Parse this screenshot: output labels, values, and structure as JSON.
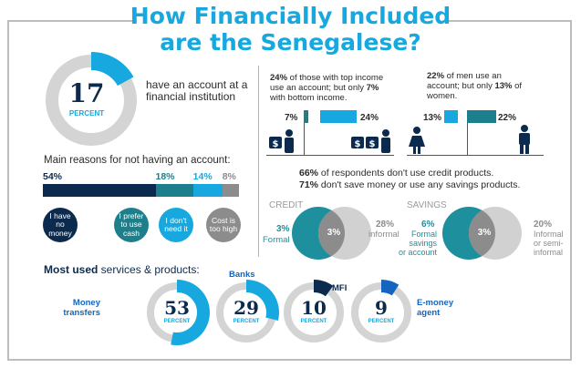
{
  "title": {
    "line1": "How Financially Included",
    "line2": "are the Senegalese?"
  },
  "account": {
    "number": "17",
    "unit": "PERCENT",
    "value": 17,
    "text_line1": "have an account at a",
    "text_line2": "financial institution"
  },
  "reasons": {
    "heading": "Main reasons for not having an account:",
    "items": [
      {
        "pct": "54%",
        "value": 54,
        "label": "I have no money",
        "color": "#0b2a4d"
      },
      {
        "pct": "18%",
        "value": 18,
        "label": "I prefer to use cash",
        "color": "#1e7f8c"
      },
      {
        "pct": "14%",
        "value": 14,
        "label": "I don't need it",
        "color": "#16a8df"
      },
      {
        "pct": "8%",
        "value": 8,
        "label": "Cost is too high",
        "color": "#8c8c8c"
      }
    ]
  },
  "income": {
    "text_a": "24%",
    "text_b": " of those with top income",
    "text_c": "use an account; but only ",
    "text_d": "7%",
    "text_e": "with bottom income.",
    "bottom_label": "7%",
    "bottom_value": 7,
    "top_label": "24%",
    "top_value": 24
  },
  "gender": {
    "text_a": "22%",
    "text_b": " of men use an",
    "text_c": "account; but only ",
    "text_d": "13%",
    "text_e": " of",
    "text_f": "women.",
    "women_label": "13%",
    "women_value": 13,
    "men_label": "22%",
    "men_value": 22
  },
  "credit_savings": {
    "line1_pct": "66%",
    "line1_text": " of respondents don't use credit products.",
    "line2_pct": "71%",
    "line2_text": " don't save money or use any savings products."
  },
  "credit": {
    "heading": "CREDIT",
    "formal_pct": "3%",
    "formal_label": "Formal",
    "overlap": "3%",
    "informal_pct": "28%",
    "informal_label": "informal"
  },
  "savings": {
    "heading": "SAVINGS",
    "formal_pct": "6%",
    "formal_l1": "Formal",
    "formal_l2": "savings",
    "formal_l3": "or account",
    "overlap": "3%",
    "informal_pct": "20%",
    "informal_l1": "Informal",
    "informal_l2": "or semi-",
    "informal_l3": "informal"
  },
  "services": {
    "heading": "Most used",
    "heading_rest": " services & products:",
    "items": [
      {
        "number": "53",
        "value": 53,
        "unit": "PERCENT",
        "label_l1": "Money",
        "label_l2": "transfers",
        "color": "#16a8df"
      },
      {
        "number": "29",
        "value": 29,
        "unit": "PERCENT",
        "label_l1": "Banks",
        "label_l2": "",
        "color": "#16a8df"
      },
      {
        "number": "10",
        "value": 10,
        "unit": "PERCENT",
        "label_l1": "MFI",
        "label_l2": "",
        "color": "#0b2a4d"
      },
      {
        "number": "9",
        "value": 9,
        "unit": "PERCENT",
        "label_l1": "E-money",
        "label_l2": "agent",
        "color": "#1565c0"
      }
    ]
  },
  "colors": {
    "navy": "#0b2a4d",
    "blue": "#16a8df",
    "teal": "#1e7f8c",
    "gray": "#8c8c8c",
    "lightgray": "#d4d4d4"
  }
}
